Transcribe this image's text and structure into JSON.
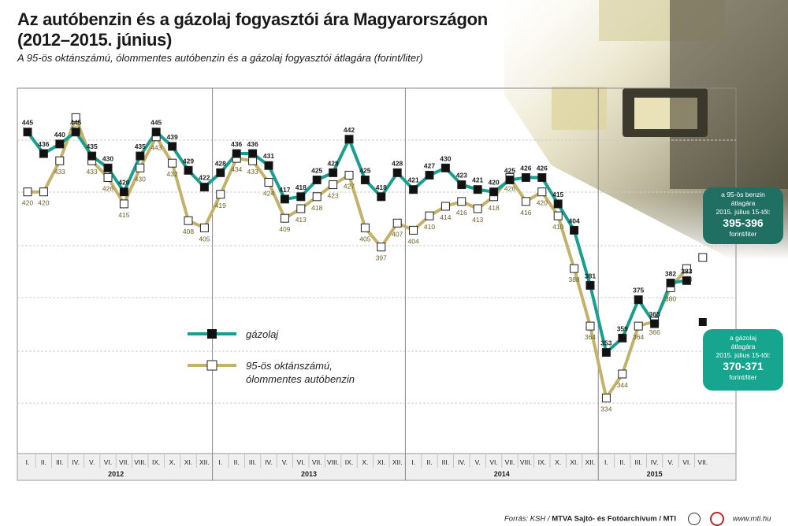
{
  "header": {
    "title": "Az autóbenzin és a gázolaj fogyasztói ára Magyarországon (2012–2015. június)",
    "subtitle": "A 95-ös oktánszámú, ólommentes autóbenzin és a gázolaj fogyasztói átlagára (forint/liter)"
  },
  "legend": {
    "diesel": "gázolaj",
    "petrol": "95-ös oktánszámú, ólommentes autóbenzin"
  },
  "callouts": {
    "petrol": {
      "l1": "a 95-ös benzin",
      "l2": "átlagára",
      "l3": "2015. július 15-től:",
      "value": "395-396",
      "unit": "forint/liter"
    },
    "diesel": {
      "l1": "a gázolaj",
      "l2": "átlagára",
      "l3": "2015. július 15-től:",
      "value": "370-371",
      "unit": "forint/liter"
    }
  },
  "footer": {
    "source_label": "Forrás: KSH /",
    "source_org": "MTVA Sajtó- és Fotóarchívum / MTI",
    "url": "www.mti.hu"
  },
  "colors": {
    "diesel": "#1a9e8f",
    "petrol": "#c3b26a",
    "callout_petrol": "#1f6f63",
    "callout_diesel": "#17a58f"
  },
  "chart_data": {
    "type": "line",
    "title": "Az autóbenzin és a gázolaj fogyasztói ára Magyarországon (2012–2015. június)",
    "ylabel": "forint/liter",
    "ylim": [
      320,
      460
    ],
    "grid": true,
    "legend_position": "center-left",
    "x": [
      "I.",
      "II.",
      "III.",
      "IV.",
      "V.",
      "VI.",
      "VII.",
      "VIII.",
      "IX.",
      "X.",
      "XI.",
      "XII.",
      "I.",
      "II.",
      "III.",
      "IV.",
      "V.",
      "VI.",
      "VII.",
      "VIII.",
      "IX.",
      "X.",
      "XI.",
      "XII.",
      "I.",
      "II.",
      "III.",
      "IV.",
      "V.",
      "VI.",
      "VII.",
      "VIII.",
      "IX.",
      "X.",
      "XI.",
      "XII.",
      "I.",
      "II.",
      "III.",
      "IV.",
      "V.",
      "VI.",
      "VII."
    ],
    "years": [
      "2012",
      "2013",
      "2014",
      "2015"
    ],
    "series": [
      {
        "name": "gázolaj",
        "values": [
          445,
          436,
          440,
          445,
          435,
          430,
          420,
          435,
          445,
          439,
          429,
          422,
          428,
          436,
          436,
          431,
          417,
          418,
          425,
          428,
          442,
          425,
          418,
          428,
          421,
          427,
          430,
          423,
          421,
          420,
          425,
          426,
          426,
          415,
          404,
          381,
          353,
          359,
          375,
          365,
          382,
          383,
          null
        ]
      },
      {
        "name": "95-ös oktánszámú, ólommentes autóbenzin",
        "values": [
          420,
          420,
          433,
          451,
          433,
          426,
          415,
          430,
          443,
          432,
          408,
          405,
          419,
          434,
          433,
          424,
          409,
          413,
          418,
          423,
          427,
          405,
          397,
          407,
          404,
          410,
          414,
          416,
          413,
          418,
          426,
          416,
          420,
          410,
          388,
          364,
          334,
          344,
          364,
          366,
          380,
          388,
          null
        ]
      }
    ],
    "labels_shown": {
      "diesel": [
        "445",
        "436",
        "440",
        "445",
        "435",
        "430",
        "420",
        "435",
        "445",
        "439",
        "429",
        "422",
        "428",
        "436",
        "436",
        "431",
        "417",
        "418",
        "425",
        "428",
        "442",
        "425",
        "418",
        "428",
        "421",
        "427",
        "430",
        "423",
        "421",
        "420",
        "425",
        "426",
        "426",
        "415",
        "404",
        "381",
        "353",
        "359",
        "375",
        "365",
        "382",
        "383"
      ],
      "petrol": [
        "420",
        "420",
        "433",
        "451",
        "433",
        "426",
        "415",
        "430",
        "443",
        "432",
        "408",
        "405",
        "419",
        "434",
        "433",
        "424",
        "409",
        "413",
        "418",
        "423",
        "427",
        "405",
        "397",
        "407",
        "404",
        "410",
        "414",
        "416",
        "413",
        "418",
        "426",
        "416",
        "420",
        "410",
        "388",
        "364",
        "334",
        "344",
        "364",
        "366",
        "380",
        "388"
      ]
    }
  }
}
